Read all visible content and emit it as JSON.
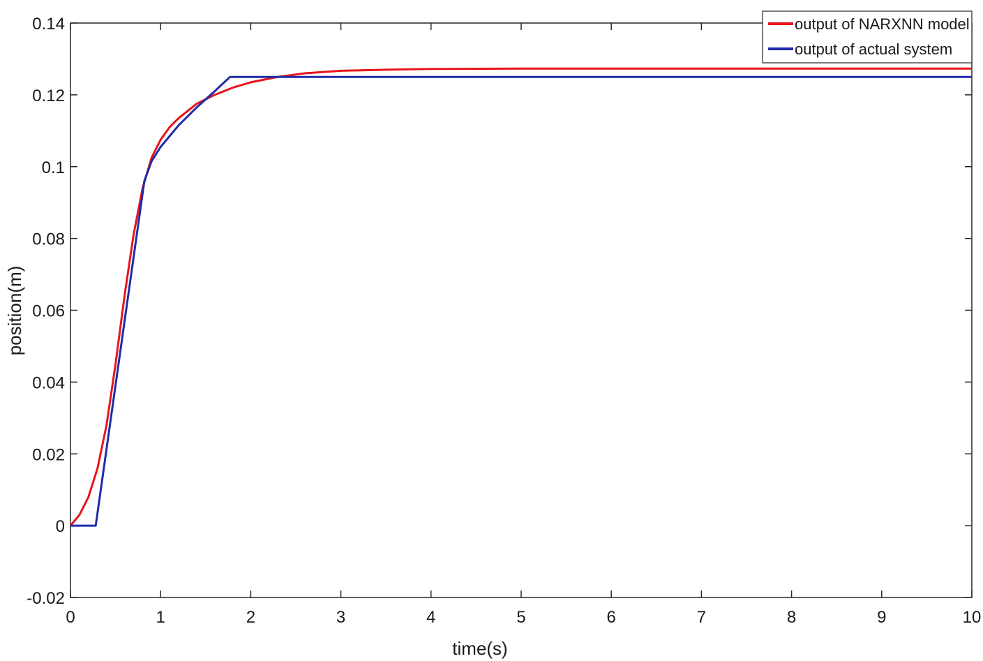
{
  "chart_data": {
    "type": "line",
    "title": "",
    "xlabel": "time(s)",
    "ylabel": "position(m)",
    "xlim": [
      0,
      10
    ],
    "ylim": [
      -0.02,
      0.14
    ],
    "xticks": [
      0,
      1,
      2,
      3,
      4,
      5,
      6,
      7,
      8,
      9,
      10
    ],
    "xtick_labels": [
      "0",
      "1",
      "2",
      "3",
      "4",
      "5",
      "6",
      "7",
      "8",
      "9",
      "10"
    ],
    "yticks": [
      -0.02,
      0,
      0.02,
      0.04,
      0.06,
      0.08,
      0.1,
      0.12,
      0.14
    ],
    "ytick_labels": [
      "-0.02",
      "0",
      "0.02",
      "0.04",
      "0.06",
      "0.08",
      "0.1",
      "0.12",
      "0.14"
    ],
    "grid": false,
    "legend_position": "top-right",
    "series": [
      {
        "name": "output of NARXNN model",
        "color": "#e8141c",
        "x": [
          0,
          0.1,
          0.2,
          0.3,
          0.4,
          0.5,
          0.6,
          0.7,
          0.8,
          0.9,
          1.0,
          1.1,
          1.2,
          1.4,
          1.6,
          1.8,
          2.0,
          2.3,
          2.6,
          3.0,
          3.5,
          4.0,
          5.0,
          6.0,
          7.0,
          8.0,
          9.0,
          10.0
        ],
        "y": [
          0,
          0.003,
          0.008,
          0.016,
          0.028,
          0.045,
          0.064,
          0.081,
          0.094,
          0.1025,
          0.1075,
          0.111,
          0.1135,
          0.1175,
          0.12,
          0.122,
          0.1235,
          0.125,
          0.126,
          0.1267,
          0.127,
          0.1272,
          0.1273,
          0.1273,
          0.1273,
          0.1273,
          0.1273,
          0.1273
        ]
      },
      {
        "name": "output of actual system",
        "color": "#1f2ca8",
        "x": [
          0,
          0.28,
          0.82,
          0.9,
          1.0,
          1.2,
          1.4,
          1.6,
          1.77,
          2.0,
          3.0,
          4.0,
          5.0,
          6.0,
          7.0,
          8.0,
          9.0,
          10.0
        ],
        "y": [
          0,
          0,
          0.096,
          0.1015,
          0.1055,
          0.1115,
          0.1165,
          0.121,
          0.125,
          0.125,
          0.125,
          0.125,
          0.125,
          0.125,
          0.125,
          0.125,
          0.125,
          0.125
        ]
      }
    ]
  }
}
